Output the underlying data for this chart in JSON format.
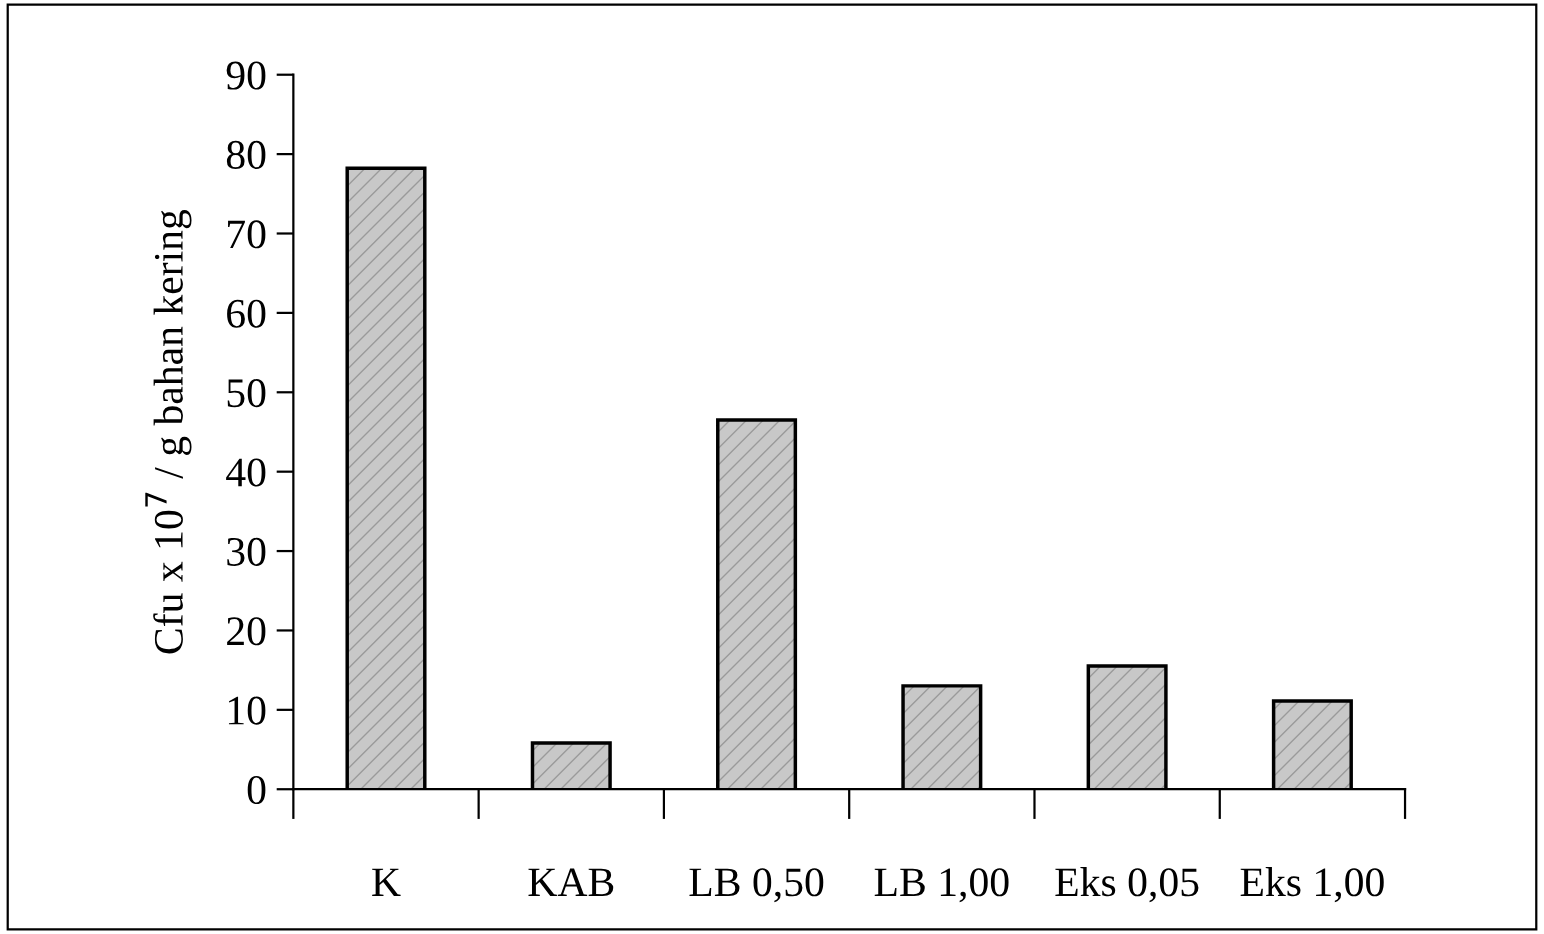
{
  "chart_data": {
    "type": "bar",
    "ylabel": "Cfu x 10$^{7}$ / g bahan kering",
    "categories": [
      "K",
      "KAB",
      "LB 0,50",
      "LB 1,00",
      "Eks 0,05",
      "Eks 1,00"
    ],
    "values": [
      78,
      5.6,
      46.3,
      12.8,
      15.3,
      10.9
    ],
    "color": "#c8c8c8",
    "ylim": [
      0,
      90
    ],
    "yticks": [
      0,
      10,
      20,
      30,
      40,
      50,
      60,
      70,
      80,
      90
    ],
    "grid": false
  }
}
